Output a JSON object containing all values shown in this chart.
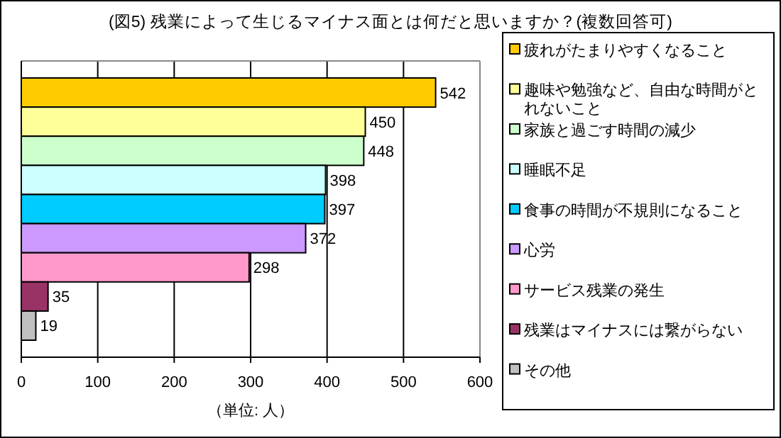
{
  "chart_data": {
    "type": "bar",
    "orientation": "horizontal",
    "title": "(図5) 残業によって生じるマイナス面とは何だと思いますか？(複数回答可)",
    "xlabel": "（単位: 人）",
    "categories": [
      null,
      null,
      null,
      null,
      null,
      null,
      null,
      null,
      null
    ],
    "series": [
      {
        "name": "疲れがたまりやすくなること",
        "color": "#ffcc00",
        "values": [
          542,
          null,
          null,
          null,
          null,
          null,
          null,
          null,
          null
        ]
      },
      {
        "name": "趣味や勉強など、自由な時間がとれないこと",
        "color": "#ffff99",
        "values": [
          null,
          450,
          null,
          null,
          null,
          null,
          null,
          null,
          null
        ]
      },
      {
        "name": "家族と過ごす時間の減少",
        "color": "#ccffcc",
        "values": [
          null,
          null,
          448,
          null,
          null,
          null,
          null,
          null,
          null
        ]
      },
      {
        "name": "睡眠不足",
        "color": "#ccffff",
        "values": [
          null,
          null,
          null,
          398,
          null,
          null,
          null,
          null,
          null
        ]
      },
      {
        "name": "食事の時間が不規則になること",
        "color": "#00ccff",
        "values": [
          null,
          null,
          null,
          null,
          397,
          null,
          null,
          null,
          null
        ]
      },
      {
        "name": "心労",
        "color": "#cc99ff",
        "values": [
          null,
          null,
          null,
          null,
          null,
          372,
          null,
          null,
          null
        ]
      },
      {
        "name": "サービス残業の発生",
        "color": "#ff99cc",
        "values": [
          null,
          null,
          null,
          null,
          null,
          null,
          298,
          null,
          null
        ]
      },
      {
        "name": "残業はマイナスには繋がらない",
        "color": "#993366",
        "values": [
          null,
          null,
          null,
          null,
          null,
          null,
          null,
          35,
          null
        ]
      },
      {
        "name": "その他",
        "color": "#c0c0c0",
        "values": [
          null,
          null,
          null,
          null,
          null,
          null,
          null,
          null,
          19
        ]
      }
    ],
    "xlim": [
      0,
      600
    ],
    "xticks": [
      0,
      100,
      200,
      300,
      400,
      500,
      600
    ],
    "grid": "x",
    "legend": "right",
    "data_labels": true
  }
}
